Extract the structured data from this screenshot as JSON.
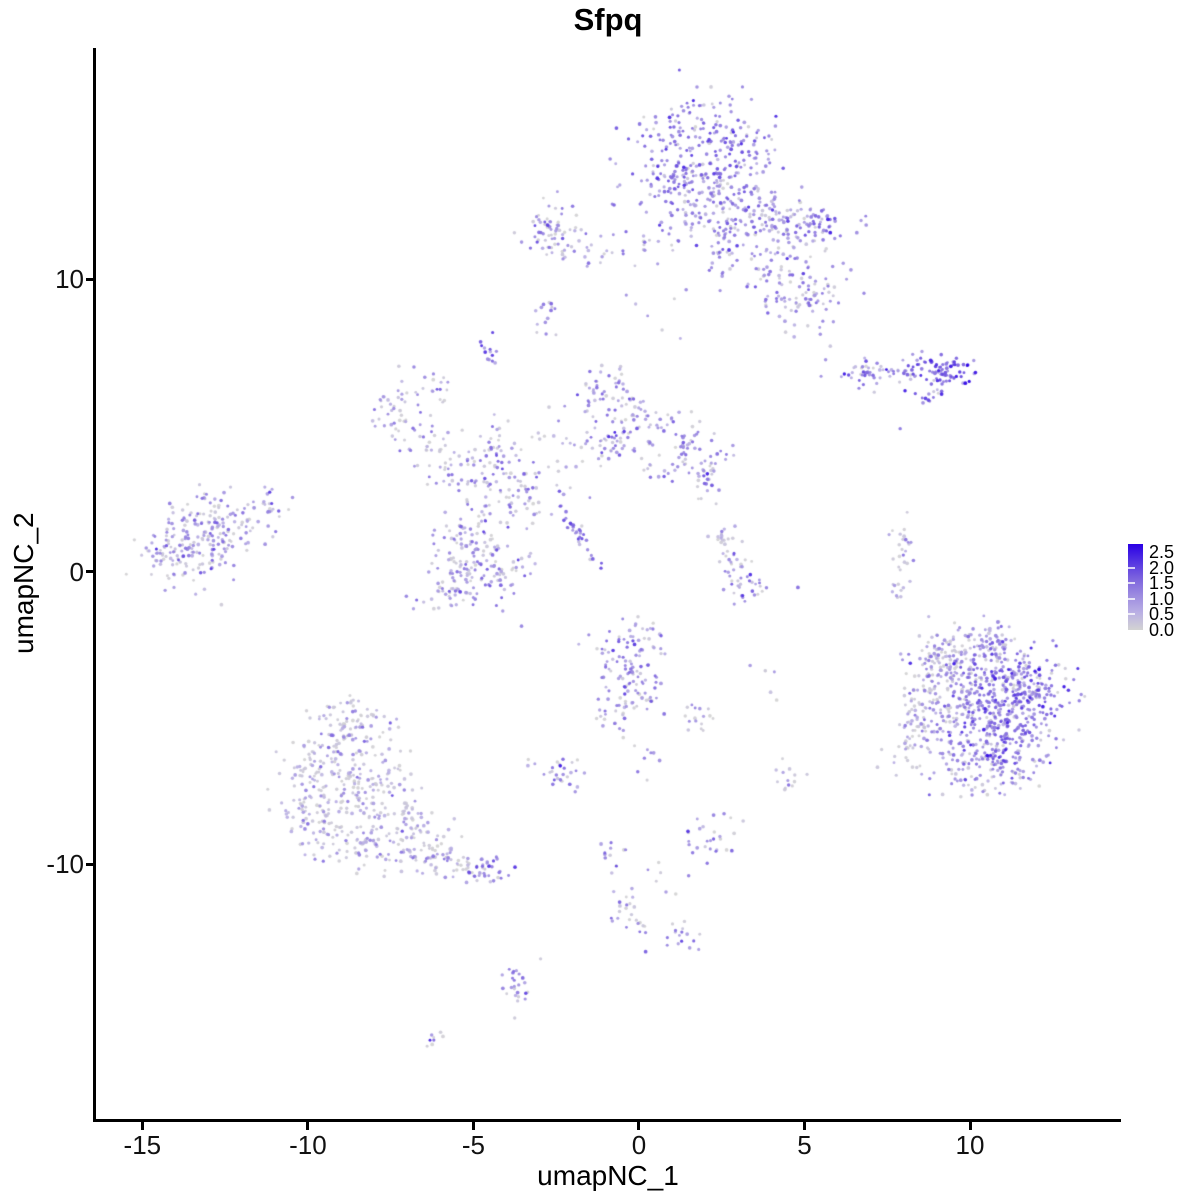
{
  "chart_data": {
    "type": "scatter",
    "title": "Sfpq",
    "xlabel": "umapNC_1",
    "ylabel": "umapNC_2",
    "x_ticks": [
      -15,
      -10,
      -5,
      0,
      5,
      10
    ],
    "y_ticks": [
      10,
      0,
      -10
    ],
    "xlim": [
      -16.4,
      14.5
    ],
    "ylim": [
      -18.7,
      17.9
    ],
    "grid": "off",
    "legend_position": "right",
    "legend_ticks": [
      2.5,
      2.0,
      1.5,
      1.0,
      0.5,
      0.0
    ],
    "expression_range": [
      0.0,
      2.5
    ],
    "color_scale": {
      "low_color": "#D3D3D3",
      "high_color": "#2A00E5",
      "stops": [
        [
          0.0,
          "#D3D3D3"
        ],
        [
          0.5,
          "#BAB0E4"
        ],
        [
          1.0,
          "#9D8CE0"
        ],
        [
          1.5,
          "#7C63DE"
        ],
        [
          2.0,
          "#5333E2"
        ],
        [
          2.5,
          "#2A00E5"
        ]
      ]
    },
    "point_radius_px": [
      1.4,
      1.9
    ],
    "point_alpha": 0.92,
    "seed": 42,
    "expr_sd": 0.45,
    "cluster_format": [
      "x",
      "y",
      "sx",
      "sy",
      "n",
      "expr_mean",
      "zero_frac",
      "angle_deg_optional"
    ],
    "clusters": [
      [
        1.78,
        14.33,
        1.14,
        1.02,
        260,
        1.2,
        0.12
      ],
      [
        2.02,
        12.53,
        0.9,
        0.75,
        140,
        1.05,
        0.15
      ],
      [
        2.56,
        11.06,
        0.36,
        0.61,
        35,
        0.9,
        0.2
      ],
      [
        3.73,
        12.18,
        0.54,
        0.48,
        60,
        1.0,
        0.15
      ],
      [
        4.88,
        11.84,
        0.75,
        0.41,
        50,
        0.95,
        0.2
      ],
      [
        4.13,
        10.48,
        0.54,
        0.55,
        55,
        1.0,
        0.2
      ],
      [
        4.97,
        9.39,
        0.66,
        0.61,
        75,
        1.0,
        0.2
      ],
      [
        5.6,
        11.77,
        0.27,
        0.31,
        25,
        1.3,
        0.1
      ],
      [
        -2.65,
        11.74,
        0.39,
        0.44,
        55,
        1.0,
        0.25
      ],
      [
        -1.75,
        11.09,
        0.66,
        0.41,
        28,
        0.7,
        0.4
      ],
      [
        -0.15,
        11.23,
        0.75,
        0.34,
        14,
        0.8,
        0.3
      ],
      [
        -2.77,
        8.77,
        0.18,
        0.31,
        14,
        1.1,
        0.2
      ],
      [
        -4.55,
        7.51,
        0.18,
        0.24,
        13,
        1.2,
        0.15
      ],
      [
        -7.17,
        5.7,
        0.45,
        0.61,
        45,
        0.85,
        0.3
      ],
      [
        -6.2,
        4.27,
        0.39,
        0.44,
        28,
        0.8,
        0.3
      ],
      [
        -5.21,
        3.48,
        0.48,
        0.55,
        40,
        0.9,
        0.3
      ],
      [
        -4.25,
        4.1,
        0.42,
        0.51,
        35,
        0.95,
        0.25
      ],
      [
        -3.55,
        3.07,
        0.42,
        0.48,
        32,
        1.0,
        0.25
      ],
      [
        -1.84,
        1.26,
        0.55,
        0.1,
        30,
        1.2,
        0.1,
        -61
      ],
      [
        -0.99,
        6.11,
        0.48,
        0.48,
        45,
        1.0,
        0.2
      ],
      [
        -0.24,
        5.09,
        0.45,
        0.58,
        45,
        0.85,
        0.3
      ],
      [
        -1.14,
        4.4,
        0.39,
        0.44,
        32,
        0.9,
        0.25
      ],
      [
        1.33,
        4.27,
        0.66,
        0.61,
        75,
        1.0,
        0.2
      ],
      [
        2.05,
        3.41,
        0.33,
        0.38,
        22,
        0.9,
        0.25
      ],
      [
        -2.5,
        4.16,
        0.75,
        0.68,
        22,
        0.7,
        0.4
      ],
      [
        -4.85,
        1.43,
        0.6,
        0.68,
        60,
        0.9,
        0.3
      ],
      [
        -5.3,
        0.34,
        0.66,
        0.61,
        70,
        0.9,
        0.3
      ],
      [
        -4.1,
        0.0,
        0.51,
        0.55,
        50,
        0.95,
        0.25
      ],
      [
        -5.75,
        -0.75,
        0.54,
        0.38,
        35,
        0.85,
        0.3
      ],
      [
        -6.2,
        6.38,
        0.36,
        0.48,
        16,
        0.7,
        0.4
      ],
      [
        2.23,
        2.29,
        0.12,
        0.27,
        4,
        1.0,
        0.2
      ],
      [
        -2.8,
        2.46,
        0.54,
        0.55,
        18,
        0.8,
        0.35
      ],
      [
        0.9,
        9.0,
        0.6,
        0.6,
        7,
        0.8,
        0.3
      ],
      [
        -13.34,
        0.92,
        0.78,
        0.68,
        150,
        0.9,
        0.3
      ],
      [
        -12.23,
        1.77,
        0.6,
        0.48,
        60,
        0.85,
        0.3
      ],
      [
        -11.33,
        2.39,
        0.36,
        0.31,
        20,
        0.8,
        0.35
      ],
      [
        -14.31,
        0.58,
        0.3,
        0.41,
        30,
        0.85,
        0.3
      ],
      [
        2.86,
        0.65,
        0.27,
        0.48,
        25,
        0.8,
        0.35
      ],
      [
        3.28,
        -0.58,
        0.45,
        0.31,
        30,
        1.2,
        0.15
      ],
      [
        2.56,
        1.16,
        0.24,
        0.24,
        10,
        0.6,
        0.4
      ],
      [
        8.01,
        0.92,
        0.21,
        0.38,
        18,
        0.8,
        0.4
      ],
      [
        7.86,
        -0.38,
        0.15,
        0.41,
        14,
        0.5,
        0.5
      ],
      [
        7.05,
        6.83,
        0.6,
        0.24,
        45,
        1.05,
        0.15
      ],
      [
        8.28,
        6.96,
        0.36,
        0.27,
        30,
        1.2,
        0.1
      ],
      [
        9.25,
        6.86,
        0.39,
        0.31,
        60,
        1.5,
        0.05
      ],
      [
        9.88,
        6.86,
        0.12,
        0.14,
        5,
        2.3,
        0
      ],
      [
        8.86,
        6.08,
        0.28,
        0.08,
        10,
        1.2,
        0.1,
        50
      ],
      [
        7.86,
        4.91,
        0.05,
        0.05,
        1,
        1.5,
        0
      ],
      [
        10.15,
        -3.07,
        0.9,
        0.55,
        120,
        1.1,
        0.2
      ],
      [
        11.27,
        -3.69,
        0.84,
        0.68,
        150,
        1.3,
        0.12
      ],
      [
        9.76,
        -4.37,
        0.72,
        0.68,
        110,
        1.0,
        0.25
      ],
      [
        10.96,
        -5.12,
        0.84,
        0.61,
        140,
        1.3,
        0.12
      ],
      [
        11.87,
        -4.37,
        0.6,
        0.82,
        90,
        1.25,
        0.15
      ],
      [
        10.06,
        -5.97,
        0.78,
        0.48,
        90,
        1.05,
        0.2
      ],
      [
        11.05,
        -6.48,
        0.6,
        0.38,
        60,
        1.15,
        0.15
      ],
      [
        8.73,
        -4.1,
        0.33,
        0.96,
        55,
        0.5,
        0.5
      ],
      [
        9.13,
        -3.0,
        0.3,
        0.44,
        30,
        0.6,
        0.45
      ],
      [
        8.37,
        -4.98,
        0.27,
        0.61,
        35,
        0.45,
        0.55
      ],
      [
        10.21,
        -7.17,
        0.84,
        0.27,
        40,
        0.8,
        0.35
      ],
      [
        10.3,
        -2.32,
        0.66,
        0.27,
        35,
        0.7,
        0.4
      ],
      [
        8.04,
        -6.25,
        0.24,
        0.41,
        12,
        0.4,
        0.6
      ],
      [
        -0.48,
        -2.94,
        0.54,
        0.51,
        60,
        1.1,
        0.2
      ],
      [
        0.09,
        -3.96,
        0.45,
        0.51,
        45,
        1.0,
        0.25
      ],
      [
        -0.63,
        -4.91,
        0.33,
        0.38,
        25,
        0.9,
        0.3
      ],
      [
        0.3,
        -2.22,
        0.27,
        0.27,
        12,
        0.9,
        0.3
      ],
      [
        1.87,
        -5.19,
        0.3,
        0.27,
        15,
        0.9,
        0.25
      ],
      [
        0.21,
        -6.25,
        0.21,
        0.34,
        8,
        0.8,
        0.3
      ],
      [
        3.83,
        -3.35,
        0.45,
        1.02,
        6,
        0.7,
        0.4
      ],
      [
        -2.41,
        -6.76,
        0.33,
        0.34,
        28,
        1.1,
        0.25
      ],
      [
        -8.61,
        -5.49,
        0.72,
        0.44,
        65,
        0.65,
        0.4
      ],
      [
        -9.28,
        -6.69,
        0.72,
        0.58,
        85,
        0.65,
        0.4
      ],
      [
        -8.01,
        -7.44,
        0.72,
        0.58,
        85,
        0.65,
        0.4
      ],
      [
        -9.52,
        -8.46,
        0.63,
        0.58,
        75,
        0.6,
        0.45
      ],
      [
        -8.19,
        -9.22,
        0.72,
        0.48,
        65,
        0.6,
        0.45
      ],
      [
        -6.96,
        -8.53,
        0.57,
        0.48,
        55,
        0.65,
        0.4
      ],
      [
        -6.42,
        -9.66,
        0.54,
        0.31,
        40,
        0.75,
        0.35
      ],
      [
        -5.48,
        -10.03,
        0.42,
        0.27,
        35,
        0.9,
        0.25
      ],
      [
        -4.49,
        -10.24,
        0.33,
        0.24,
        30,
        1.15,
        0.15
      ],
      [
        -8.83,
        -4.78,
        0.54,
        0.27,
        25,
        0.55,
        0.5
      ],
      [
        -10.09,
        -7.44,
        0.24,
        0.85,
        30,
        0.55,
        0.5
      ],
      [
        -0.84,
        -9.56,
        0.21,
        0.34,
        13,
        0.9,
        0.3
      ],
      [
        -0.48,
        -11.37,
        0.24,
        0.41,
        16,
        0.9,
        0.3
      ],
      [
        0.09,
        -12.08,
        0.18,
        0.27,
        9,
        0.8,
        0.3
      ],
      [
        1.2,
        -12.49,
        0.36,
        0.24,
        16,
        1.0,
        0.25
      ],
      [
        2.17,
        -9.15,
        0.39,
        0.38,
        28,
        0.9,
        0.3
      ],
      [
        4.49,
        -7.2,
        0.3,
        0.31,
        13,
        0.8,
        0.35
      ],
      [
        0.51,
        -10.51,
        0.24,
        0.48,
        6,
        0.7,
        0.4
      ],
      [
        -3.64,
        -14.16,
        0.24,
        0.48,
        25,
        1.0,
        0.25
      ],
      [
        -6.2,
        -16.04,
        0.18,
        0.17,
        8,
        0.7,
        0.4
      ]
    ]
  }
}
